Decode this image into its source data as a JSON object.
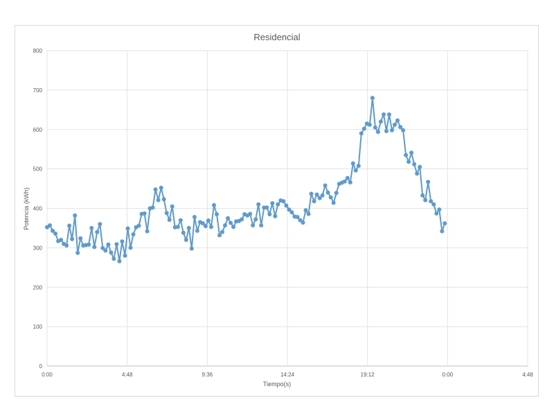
{
  "chart_data": {
    "type": "line",
    "title": "Residencial",
    "xlabel": "Tiempo(s)",
    "ylabel": "Potencia (kWh)",
    "ylim": [
      0,
      800
    ],
    "y_ticks": [
      "0",
      "100",
      "200",
      "300",
      "400",
      "500",
      "600",
      "700",
      "800"
    ],
    "x_range_hours": [
      0,
      28.8
    ],
    "x_ticks": [
      "0:00",
      "4:48",
      "9:36",
      "14:24",
      "19:12",
      "0:00",
      "4:48"
    ],
    "grid": true,
    "color": "#5b9bd5",
    "series": [
      {
        "x_hours": [
          0,
          0.1667,
          0.3333,
          0.5,
          0.6667,
          0.8333,
          1,
          1.1667,
          1.3333,
          1.5,
          1.6667,
          1.8333,
          2,
          2.1667,
          2.3333,
          2.5,
          2.6667,
          2.8333,
          3,
          3.1667,
          3.3333,
          3.5,
          3.6667,
          3.8333,
          4,
          4.1667,
          4.3333,
          4.5,
          4.6667,
          4.8333,
          5,
          5.1667,
          5.3333,
          5.5,
          5.6667,
          5.8333,
          6,
          6.1667,
          6.3333,
          6.5,
          6.6667,
          6.8333,
          7,
          7.1667,
          7.3333,
          7.5,
          7.6667,
          7.8333,
          8,
          8.1667,
          8.3333,
          8.5,
          8.6667,
          8.8333,
          9,
          9.1667,
          9.3333,
          9.5,
          9.6667,
          9.8333,
          10,
          10.1667,
          10.3333,
          10.5,
          10.6667,
          10.8333,
          11,
          11.1667,
          11.3333,
          11.5,
          11.6667,
          11.8333,
          12,
          12.1667,
          12.3333,
          12.5,
          12.6667,
          12.8333,
          13,
          13.1667,
          13.3333,
          13.5,
          13.6667,
          13.8333,
          14,
          14.1667,
          14.3333,
          14.5,
          14.6667,
          14.8333,
          15,
          15.1667,
          15.3333,
          15.5,
          15.6667,
          15.8333,
          16,
          16.1667,
          16.3333,
          16.5,
          16.6667,
          16.8333,
          17,
          17.1667,
          17.3333,
          17.5,
          17.6667,
          17.8333,
          18,
          18.1667,
          18.3333,
          18.5,
          18.6667,
          18.8333,
          19,
          19.1667,
          19.3333,
          19.5,
          19.6667,
          19.8333,
          20,
          20.1667,
          20.3333,
          20.5,
          20.6667,
          20.8333,
          21,
          21.1667,
          21.3333,
          21.5,
          21.6667,
          21.8333,
          22,
          22.1667,
          22.3333,
          22.5,
          22.6667,
          22.8333,
          23,
          23.1667,
          23.3333,
          23.5,
          23.6667,
          23.8333
        ],
        "values": [
          352,
          357,
          343,
          336,
          317,
          320,
          310,
          306,
          356,
          322,
          382,
          287,
          324,
          306,
          307,
          308,
          350,
          302,
          340,
          360,
          299,
          293,
          308,
          288,
          272,
          309,
          266,
          316,
          280,
          349,
          300,
          334,
          352,
          356,
          386,
          387,
          342,
          400,
          402,
          448,
          421,
          452,
          423,
          388,
          371,
          405,
          352,
          353,
          370,
          338,
          320,
          350,
          298,
          378,
          343,
          365,
          362,
          355,
          369,
          353,
          408,
          385,
          332,
          340,
          357,
          375,
          363,
          353,
          367,
          368,
          372,
          385,
          382,
          386,
          357,
          372,
          410,
          357,
          402,
          402,
          385,
          413,
          380,
          410,
          420,
          418,
          407,
          397,
          390,
          379,
          378,
          370,
          364,
          395,
          386,
          437,
          418,
          435,
          426,
          433,
          458,
          440,
          428,
          414,
          439,
          462,
          465,
          468,
          477,
          466,
          514,
          496,
          508,
          590,
          602,
          615,
          612,
          680,
          605,
          594,
          620,
          638,
          596,
          638,
          598,
          612,
          623,
          606,
          598,
          535,
          518,
          541,
          512,
          488,
          505,
          433,
          421,
          467,
          418,
          410,
          387,
          397,
          342,
          362
        ]
      }
    ]
  }
}
